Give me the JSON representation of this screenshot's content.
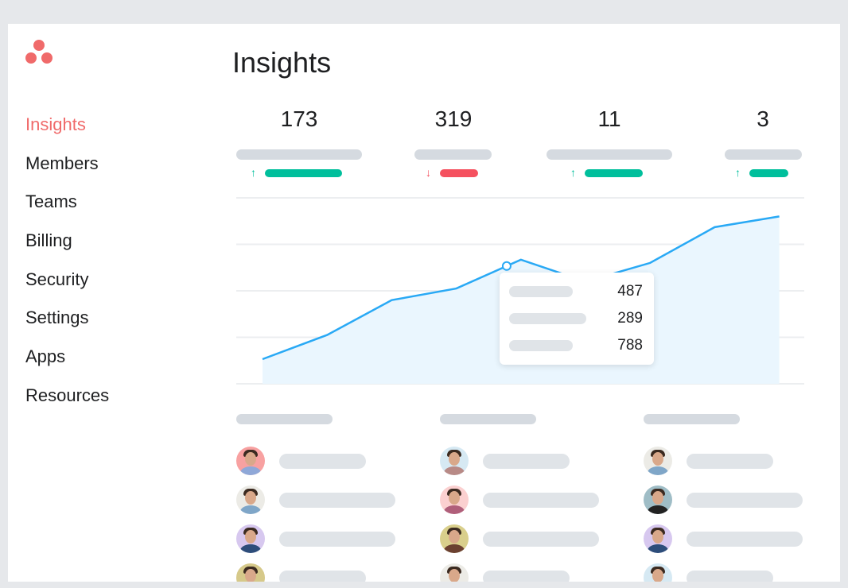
{
  "app": {
    "brand_color": "#f06a6a",
    "logo_icon": "asana-dots-icon"
  },
  "sidebar": {
    "items": [
      {
        "label": "Insights",
        "active": true
      },
      {
        "label": "Members"
      },
      {
        "label": "Teams"
      },
      {
        "label": "Billing"
      },
      {
        "label": "Security"
      },
      {
        "label": "Settings"
      },
      {
        "label": "Apps"
      },
      {
        "label": "Resources"
      }
    ]
  },
  "header": {
    "title": "Insights"
  },
  "stats": [
    {
      "value": "173",
      "trend": "up",
      "color": "#00bf9c"
    },
    {
      "value": "319",
      "trend": "down",
      "color": "#f5515f"
    },
    {
      "value": "11",
      "trend": "up",
      "color": "#00bf9c"
    },
    {
      "value": "3",
      "trend": "up",
      "color": "#00bf9c"
    }
  ],
  "chart_data": {
    "type": "area",
    "x": [
      1,
      2,
      3,
      4,
      5,
      6,
      7,
      8,
      9
    ],
    "values": [
      0.53,
      1.05,
      1.8,
      2.05,
      2.67,
      2.2,
      2.6,
      3.37,
      3.6
    ],
    "ylim": [
      0,
      4
    ],
    "grid": true,
    "line_color": "#29a9f5",
    "fill_color": "#eaf6fe",
    "tooltip": {
      "values": [
        "487",
        "289",
        "788"
      ]
    }
  },
  "members": {
    "columns": [
      [
        {
          "bg": "#f8a1a1",
          "shirt": "#8fa8d8"
        },
        {
          "bg": "#ecebe6",
          "shirt": "#7fa6c8"
        },
        {
          "bg": "#d7c8ef",
          "shirt": "#2d4d7a"
        },
        {
          "bg": "#d6c98a",
          "shirt": "#556"
        }
      ],
      [
        {
          "bg": "#d6e9f3",
          "shirt": "#b88a86"
        },
        {
          "bg": "#fbd0d0",
          "shirt": "#b05f7a"
        },
        {
          "bg": "#d9cf8c",
          "shirt": "#6b4030"
        },
        {
          "bg": "#ecebe6",
          "shirt": "#333"
        }
      ],
      [
        {
          "bg": "#ecebe6",
          "shirt": "#7fa6c8"
        },
        {
          "bg": "#9fbdc6",
          "shirt": "#222"
        },
        {
          "bg": "#d7c8ef",
          "shirt": "#2d4d7a"
        },
        {
          "bg": "#d6e9f3",
          "shirt": "#445"
        }
      ]
    ]
  }
}
